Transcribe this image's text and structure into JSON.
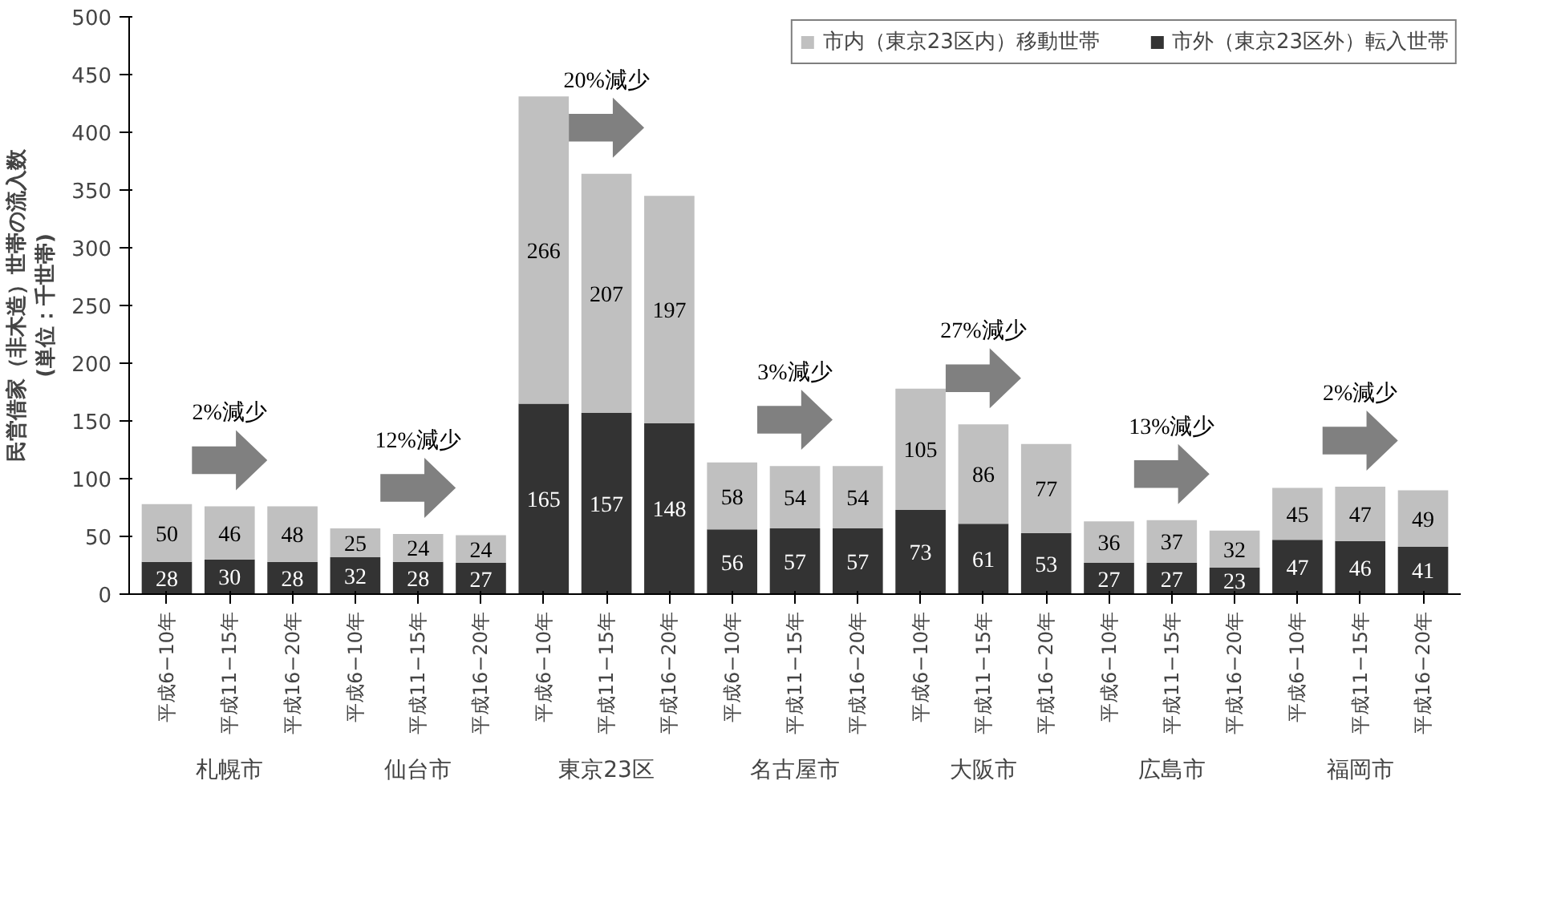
{
  "chart_data": {
    "type": "bar",
    "stacked": true,
    "ylabel": "民営借家（非木造）世帯の流入数\n(単位：千世帯)",
    "categories": [
      "平成6−10年",
      "平成11−15年",
      "平成16−20年",
      "平成6−10年",
      "平成11−15年",
      "平成16−20年",
      "平成6−10年",
      "平成11−15年",
      "平成16−20年",
      "平成6−10年",
      "平成11−15年",
      "平成16−20年",
      "平成6−10年",
      "平成11−15年",
      "平成16−20年",
      "平成6−10年",
      "平成11−15年",
      "平成16−20年",
      "平成6−10年",
      "平成11−15年",
      "平成16−20年"
    ],
    "series": [
      {
        "name": "市外（東京23区外）転入世帯",
        "color": "#333333",
        "values": [
          28,
          30,
          28,
          32,
          28,
          27,
          165,
          157,
          148,
          56,
          57,
          57,
          73,
          61,
          53,
          27,
          27,
          23,
          47,
          46,
          41
        ]
      },
      {
        "name": "市内（東京23区内）移動世帯",
        "color": "#c0c0c0",
        "values": [
          50,
          46,
          48,
          25,
          24,
          24,
          266,
          207,
          197,
          58,
          54,
          54,
          105,
          86,
          77,
          36,
          37,
          32,
          45,
          47,
          49
        ]
      }
    ],
    "annotations": [
      "札幌市",
      "仙台市",
      "東京23区",
      "名古屋市",
      "大阪市",
      "広島市",
      "福岡市",
      "2%減少",
      "12%減少",
      "20%減少",
      "3%減少",
      "27%減少",
      "13%減少",
      "2%減少"
    ],
    "ylim": [
      0,
      500
    ],
    "yticks": [
      0,
      50,
      100,
      150,
      200,
      250,
      300,
      350,
      400,
      450,
      500
    ],
    "data_labels": true,
    "legend": "top right",
    "grid": false
  }
}
